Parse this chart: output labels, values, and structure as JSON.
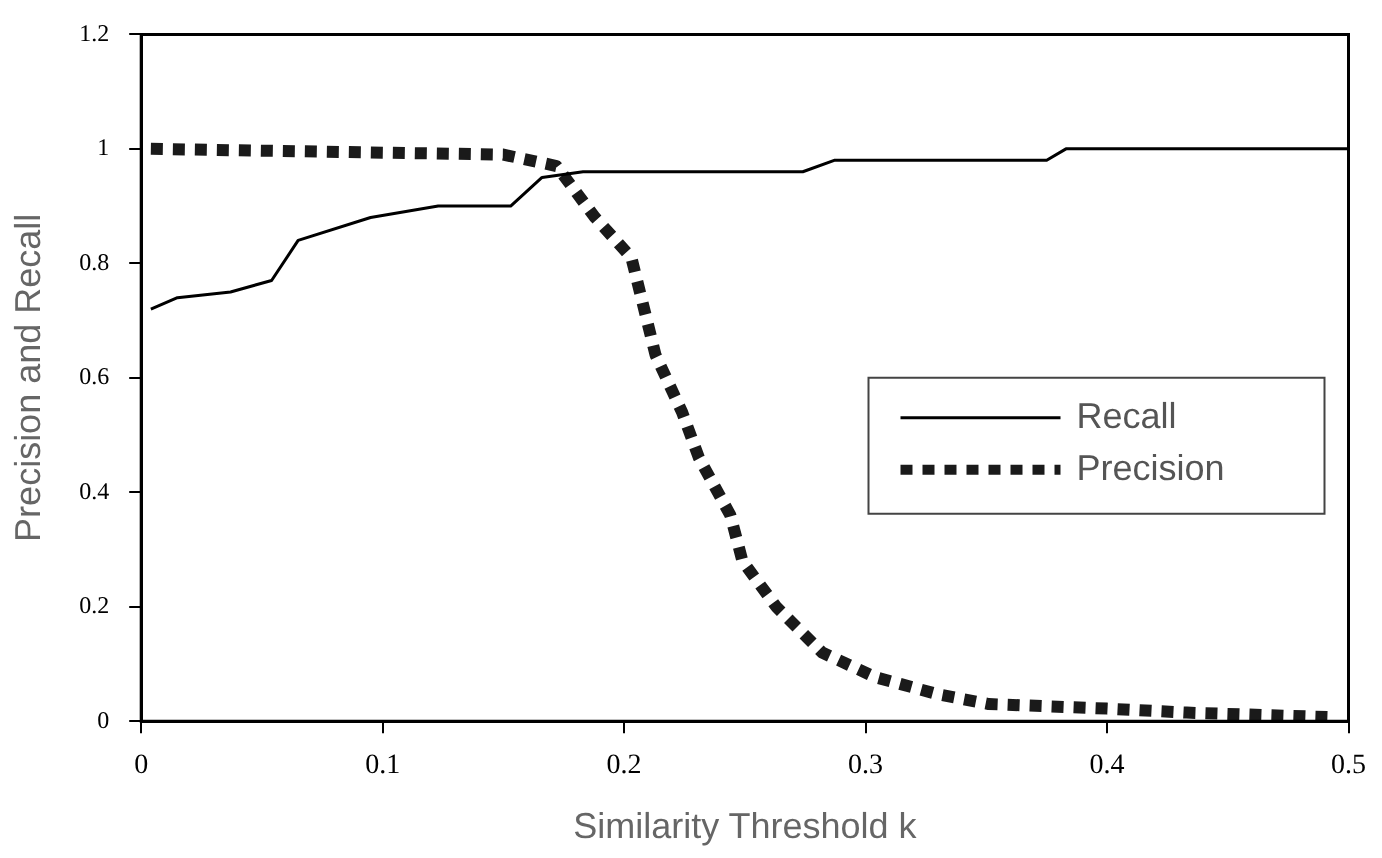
{
  "chart_data": {
    "type": "line",
    "xlabel": "Similarity Threshold k",
    "ylabel": "Precision and Recall",
    "xlim": [
      0,
      0.5
    ],
    "xticks": [
      0,
      0.1,
      0.2,
      0.3,
      0.4,
      0.5
    ],
    "ylim": [
      0,
      1.2
    ],
    "yticks": [
      0,
      0.2,
      0.4,
      0.6,
      0.8,
      1,
      1.2
    ],
    "grid": false,
    "legend": "right",
    "marker": "none",
    "series": [
      {
        "name": "Recall",
        "color": "#000000",
        "line_style": "solid",
        "x": [
          0.004,
          0.015,
          0.037,
          0.054,
          0.065,
          0.095,
          0.123,
          0.153,
          0.166,
          0.183,
          0.274,
          0.287,
          0.375,
          0.383,
          0.5
        ],
        "values": [
          0.72,
          0.74,
          0.75,
          0.77,
          0.84,
          0.88,
          0.9,
          0.9,
          0.95,
          0.96,
          0.96,
          0.98,
          0.98,
          1,
          1
        ]
      },
      {
        "name": "Precision",
        "color": "#1a1a1a",
        "line_style": "dotted",
        "x": [
          0.004,
          0.15,
          0.172,
          0.188,
          0.203,
          0.213,
          0.224,
          0.231,
          0.244,
          0.249,
          0.263,
          0.282,
          0.304,
          0.33,
          0.351,
          0.4,
          0.433,
          0.493
        ],
        "values": [
          1,
          0.99,
          0.97,
          0.88,
          0.81,
          0.64,
          0.54,
          0.46,
          0.36,
          0.28,
          0.2,
          0.12,
          0.077,
          0.047,
          0.03,
          0.022,
          0.015,
          0.007
        ]
      }
    ]
  }
}
